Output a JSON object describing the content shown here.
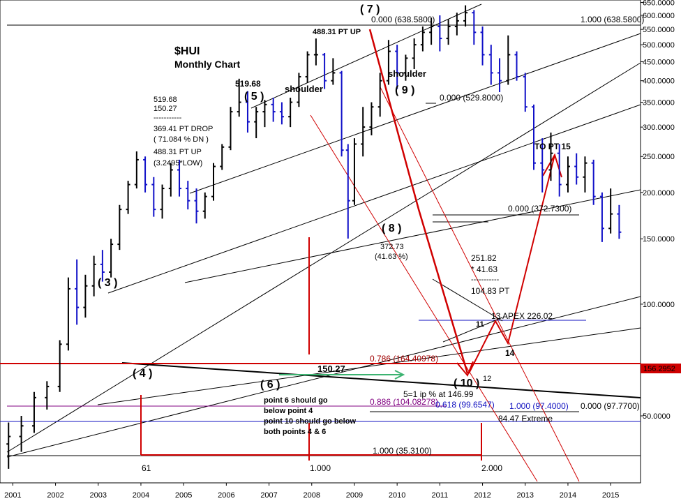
{
  "chart_data": {
    "type": "bar",
    "subtype": "ohlc",
    "title": "$HUI",
    "subtitle": "Monthly Chart",
    "xlabel": "",
    "ylabel": "",
    "scale": "log",
    "ylim": [
      33,
      660
    ],
    "xlim": [
      2000.7,
      2015.7
    ],
    "grid": false,
    "y_ticks": [
      {
        "value": 50,
        "label": "50.0000"
      },
      {
        "value": 100,
        "label": "100.0000"
      },
      {
        "value": 150,
        "label": "150.0000"
      },
      {
        "value": 200,
        "label": "200.0000"
      },
      {
        "value": 250,
        "label": "250.0000"
      },
      {
        "value": 300,
        "label": "300.0000"
      },
      {
        "value": 350,
        "label": "350.0000"
      },
      {
        "value": 400,
        "label": "400.0000"
      },
      {
        "value": 450,
        "label": "450.0000"
      },
      {
        "value": 500,
        "label": "500.0000"
      },
      {
        "value": 550,
        "label": "550.0000"
      },
      {
        "value": 600,
        "label": "600.0000"
      },
      {
        "value": 650,
        "label": "650.0000"
      }
    ],
    "x_ticks": [
      {
        "value": 2001,
        "label": "2001"
      },
      {
        "value": 2002,
        "label": "2002"
      },
      {
        "value": 2003,
        "label": "2003"
      },
      {
        "value": 2004,
        "label": "2004"
      },
      {
        "value": 2005,
        "label": "2005"
      },
      {
        "value": 2006,
        "label": "2006"
      },
      {
        "value": 2007,
        "label": "2007"
      },
      {
        "value": 2008,
        "label": "2008"
      },
      {
        "value": 2009,
        "label": "2009"
      },
      {
        "value": 2010,
        "label": "2010"
      },
      {
        "value": 2011,
        "label": "2011"
      },
      {
        "value": 2012,
        "label": "2012"
      },
      {
        "value": 2013,
        "label": "2013"
      },
      {
        "value": 2014,
        "label": "2014"
      },
      {
        "value": 2015,
        "label": "2015"
      }
    ],
    "price_marker": {
      "value": 156.2952,
      "label": "156.2952"
    },
    "series": [
      {
        "values": [
          [
            2000.9,
            42,
            48,
            36,
            44
          ],
          [
            2001.2,
            44,
            50,
            40,
            47
          ],
          [
            2001.5,
            47,
            58,
            45,
            56
          ],
          [
            2001.8,
            56,
            62,
            52,
            60
          ],
          [
            2002.1,
            60,
            80,
            58,
            78
          ],
          [
            2002.3,
            78,
            118,
            75,
            110
          ],
          [
            2002.5,
            110,
            132,
            88,
            98
          ],
          [
            2002.7,
            98,
            120,
            92,
            112
          ],
          [
            2002.9,
            112,
            135,
            105,
            128
          ],
          [
            2003.1,
            128,
            140,
            115,
            122
          ],
          [
            2003.3,
            122,
            150,
            118,
            145
          ],
          [
            2003.5,
            145,
            185,
            140,
            180
          ],
          [
            2003.7,
            180,
            215,
            175,
            210
          ],
          [
            2003.9,
            210,
            258,
            205,
            245
          ],
          [
            2004.1,
            245,
            250,
            200,
            210
          ],
          [
            2004.3,
            210,
            220,
            172,
            180
          ],
          [
            2004.5,
            180,
            210,
            170,
            205
          ],
          [
            2004.7,
            205,
            240,
            195,
            230
          ],
          [
            2004.9,
            230,
            245,
            195,
            205
          ],
          [
            2005.1,
            205,
            215,
            180,
            190
          ],
          [
            2005.3,
            190,
            205,
            165,
            178
          ],
          [
            2005.5,
            178,
            200,
            170,
            195
          ],
          [
            2005.7,
            195,
            240,
            190,
            235
          ],
          [
            2005.9,
            235,
            270,
            230,
            265
          ],
          [
            2006.1,
            265,
            340,
            260,
            330
          ],
          [
            2006.3,
            330,
            405,
            320,
            350
          ],
          [
            2006.5,
            350,
            375,
            290,
            310
          ],
          [
            2006.7,
            310,
            340,
            280,
            330
          ],
          [
            2006.9,
            330,
            355,
            300,
            345
          ],
          [
            2007.1,
            345,
            360,
            310,
            330
          ],
          [
            2007.3,
            330,
            350,
            305,
            320
          ],
          [
            2007.5,
            320,
            360,
            300,
            350
          ],
          [
            2007.7,
            350,
            420,
            340,
            410
          ],
          [
            2007.9,
            410,
            480,
            395,
            470
          ],
          [
            2008.1,
            470,
            519.68,
            440,
            470
          ],
          [
            2008.3,
            470,
            475,
            380,
            400
          ],
          [
            2008.5,
            400,
            460,
            390,
            420
          ],
          [
            2008.7,
            420,
            425,
            250,
            260
          ],
          [
            2008.85,
            260,
            270,
            150.27,
            190
          ],
          [
            2009.0,
            190,
            280,
            185,
            270
          ],
          [
            2009.2,
            270,
            340,
            250,
            300
          ],
          [
            2009.4,
            300,
            350,
            285,
            340
          ],
          [
            2009.6,
            340,
            420,
            320,
            400
          ],
          [
            2009.8,
            400,
            515,
            390,
            480
          ],
          [
            2010.0,
            480,
            500,
            380,
            420
          ],
          [
            2010.2,
            420,
            470,
            400,
            460
          ],
          [
            2010.4,
            460,
            520,
            430,
            500
          ],
          [
            2010.6,
            500,
            560,
            480,
            540
          ],
          [
            2010.8,
            540,
            590,
            500,
            560
          ],
          [
            2011.0,
            560,
            600,
            480,
            520
          ],
          [
            2011.2,
            520,
            585,
            500,
            560
          ],
          [
            2011.4,
            560,
            610,
            530,
            580
          ],
          [
            2011.6,
            580,
            638.58,
            560,
            610
          ],
          [
            2011.8,
            610,
            620,
            500,
            540
          ],
          [
            2012.0,
            540,
            560,
            440,
            470
          ],
          [
            2012.2,
            470,
            500,
            390,
            420
          ],
          [
            2012.4,
            420,
            460,
            372.73,
            400
          ],
          [
            2012.6,
            400,
            529.8,
            390,
            470
          ],
          [
            2012.8,
            470,
            480,
            400,
            410
          ],
          [
            2013.0,
            410,
            420,
            330,
            340
          ],
          [
            2013.2,
            340,
            345,
            230,
            240
          ],
          [
            2013.4,
            240,
            280,
            200,
            230
          ],
          [
            2013.6,
            230,
            290,
            215,
            255
          ],
          [
            2013.8,
            255,
            270,
            195,
            210
          ],
          [
            2014.0,
            210,
            250,
            200,
            235
          ],
          [
            2014.2,
            235,
            255,
            210,
            220
          ],
          [
            2014.4,
            220,
            250,
            200,
            240
          ],
          [
            2014.6,
            240,
            245,
            185,
            195
          ],
          [
            2014.8,
            195,
            200,
            146.99,
            160
          ],
          [
            2015.0,
            160,
            205,
            155,
            175
          ],
          [
            2015.2,
            175,
            185,
            150,
            156.3
          ]
        ]
      }
    ],
    "labels": {
      "wave_3": "( 3 )",
      "wave_4": "( 4 )",
      "wave_5": "( 5 )",
      "wave_6": "( 6 )",
      "wave_7": "( 7 )",
      "wave_8": "( 8 )",
      "wave_9": "( 9 )",
      "wave_10": "( 10 )",
      "val_519": "519.68",
      "note1_l1": "519.68",
      "note1_l2": "150.27",
      "note1_l3": "-----------",
      "note1_l4": "369.41 PT DROP",
      "note1_l5": "( 71.084 % DN )",
      "note1_l6": "488.31 PT UP",
      "note1_l7": "(3.2495*LOW)",
      "pt_up": "488.31 PT UP",
      "shoulder_left": "shoulder",
      "shoulder_right": "shoulder",
      "fib_top_left": "0.000 (638.5800)",
      "fib_top_right": "1.000 (638.5800)",
      "fib_529": "0.000 (529.8000)",
      "fib_372": "0.000 (372.7300)",
      "val_372": "372.73",
      "pct_41": "(41.63 %)",
      "calc1": "251.82",
      "calc2": "*  41.63",
      "calc3": "-----------",
      "calc4": "104.83 PT",
      "to_pt15": "TO PT 15",
      "apex": "13 APEX  226.02",
      "pt_11": "11",
      "pt_12": "12",
      "pt_14": "14",
      "fib_786": "0.786 (164.40978)",
      "val_150": "150.27",
      "ip": "5=1 ip % at 146.99",
      "fib_886": "0.886 (104.08278)",
      "fib_618": "0.618 (99.6547)",
      "fib_974": "1.000 (97.4000)",
      "fib_977": "0.000 (97.7700)",
      "extreme": "84.47 Extreme",
      "note2_l1": "point 6 should go",
      "note2_l2": "below point 4",
      "note2_l3": "point 10 should go below",
      "note2_l4": "both points 4 & 6",
      "fib_353": "1.000 (35.3100)",
      "cnt_61": "61",
      "cnt_1": "1.000",
      "cnt_2": "2.000"
    }
  }
}
